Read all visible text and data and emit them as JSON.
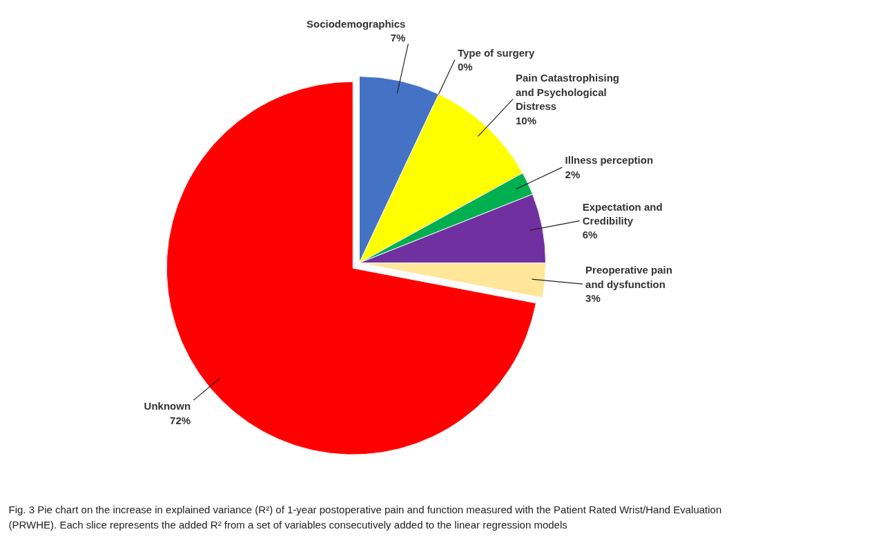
{
  "chart_data": {
    "type": "pie",
    "categories": [
      "Sociodemographics",
      "Type of surgery",
      "Pain Catastrophising and Psychological Distress",
      "Illness perception",
      "Expectation and Credibility",
      "Preoperative pain and dysfunction",
      "Unknown"
    ],
    "values": [
      7,
      0,
      10,
      2,
      6,
      3,
      72
    ],
    "colors": [
      "#4472c4",
      "#000000",
      "#ffff00",
      "#00b050",
      "#7030a0",
      "#ffe699",
      "#ff0000"
    ],
    "value_labels": [
      "7%",
      "0%",
      "10%",
      "2%",
      "6%",
      "3%",
      "72%"
    ],
    "annotations": [
      "Fig. 3  Pie chart on the increase in explained variance (R²) of 1-year postoperative pain and function measured with the Patient Rated Wrist/Hand Evaluation (PRWHE). Each slice represents the added R² from a set of variables consecutively added to the linear regression models"
    ]
  }
}
